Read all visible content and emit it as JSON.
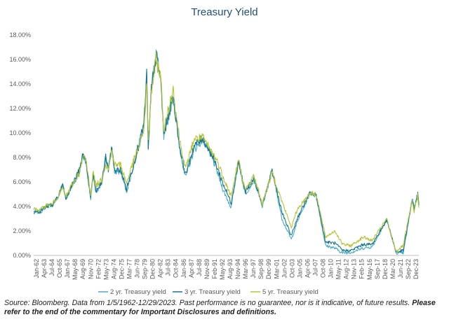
{
  "chart_data": {
    "type": "line",
    "title": "Treasury Yield",
    "xlabel": "",
    "ylabel": "",
    "ylim": [
      0,
      18
    ],
    "yticks": [
      "0.00%",
      "2.00%",
      "4.00%",
      "6.00%",
      "8.00%",
      "10.00%",
      "12.00%",
      "14.00%",
      "16.00%",
      "18.00%"
    ],
    "xticks": [
      "Jan-62",
      "Apr-63",
      "Jul-64",
      "Oct-65",
      "Jan-67",
      "May-68",
      "Aug-69",
      "Nov-70",
      "Feb-72",
      "May-73",
      "Aug-74",
      "Dec-75",
      "Mar-77",
      "Jun-78",
      "Sep-79",
      "Dec-80",
      "Apr-82",
      "Jul-83",
      "Oct-84",
      "Jan-86",
      "Apr-87",
      "Jul-88",
      "Nov-89",
      "Feb-91",
      "May-92",
      "Aug-93",
      "Nov-94",
      "Mar-96",
      "Jun-97",
      "Sep-98",
      "Dec-99",
      "Mar-01",
      "Jun-02",
      "Oct-03",
      "Jan-05",
      "Apr-06",
      "Jul-07",
      "Oct-08",
      "Jan-10",
      "May-11",
      "Aug-12",
      "Nov-13",
      "Feb-15",
      "May-16",
      "Sep-17",
      "Dec-18",
      "Mar-20",
      "Jun-21",
      "Sep-22",
      "Dec-23"
    ],
    "x_range": [
      "1962-01",
      "2023-12"
    ],
    "grid": false,
    "legend": "bottom",
    "series": [
      {
        "name": "2 yr. Treasury yield",
        "color": "#4bacc6",
        "points": [
          [
            "1962-01",
            3.6
          ],
          [
            "1963-01",
            3.5
          ],
          [
            "1964-01",
            4.0
          ],
          [
            "1965-01",
            4.1
          ],
          [
            "1966-01",
            4.8
          ],
          [
            "1966-09",
            5.9
          ],
          [
            "1967-03",
            4.6
          ],
          [
            "1968-01",
            5.5
          ],
          [
            "1969-06",
            6.9
          ],
          [
            "1969-12",
            8.2
          ],
          [
            "1970-06",
            7.6
          ],
          [
            "1971-03",
            4.5
          ],
          [
            "1971-08",
            6.6
          ],
          [
            "1972-01",
            5.0
          ],
          [
            "1972-12",
            5.8
          ],
          [
            "1973-08",
            8.2
          ],
          [
            "1974-01",
            7.0
          ],
          [
            "1974-08",
            8.9
          ],
          [
            "1975-01",
            6.8
          ],
          [
            "1976-01",
            6.9
          ],
          [
            "1976-12",
            5.2
          ],
          [
            "1978-01",
            7.2
          ],
          [
            "1979-01",
            9.4
          ],
          [
            "1979-10",
            11.0
          ],
          [
            "1980-03",
            15.0
          ],
          [
            "1980-06",
            8.5
          ],
          [
            "1980-12",
            13.8
          ],
          [
            "1981-09",
            16.6
          ],
          [
            "1982-06",
            14.5
          ],
          [
            "1982-12",
            9.6
          ],
          [
            "1984-06",
            13.0
          ],
          [
            "1985-06",
            8.9
          ],
          [
            "1986-06",
            6.4
          ],
          [
            "1987-10",
            8.6
          ],
          [
            "1989-03",
            9.5
          ],
          [
            "1990-06",
            8.3
          ],
          [
            "1991-06",
            7.0
          ],
          [
            "1992-06",
            5.4
          ],
          [
            "1993-10",
            3.9
          ],
          [
            "1994-12",
            7.7
          ],
          [
            "1996-01",
            5.0
          ],
          [
            "1997-06",
            6.2
          ],
          [
            "1998-10",
            4.0
          ],
          [
            "2000-05",
            6.9
          ],
          [
            "2001-12",
            3.0
          ],
          [
            "2003-06",
            1.3
          ],
          [
            "2004-06",
            2.8
          ],
          [
            "2006-06",
            5.1
          ],
          [
            "2007-06",
            4.9
          ],
          [
            "2008-12",
            0.8
          ],
          [
            "2010-06",
            0.6
          ],
          [
            "2011-09",
            0.2
          ],
          [
            "2013-01",
            0.25
          ],
          [
            "2015-01",
            0.6
          ],
          [
            "2016-06",
            0.7
          ],
          [
            "2018-10",
            2.9
          ],
          [
            "2019-08",
            1.5
          ],
          [
            "2020-04",
            0.2
          ],
          [
            "2021-06",
            0.2
          ],
          [
            "2022-06",
            3.2
          ],
          [
            "2022-11",
            4.7
          ],
          [
            "2023-03",
            3.9
          ],
          [
            "2023-10",
            5.1
          ],
          [
            "2023-12",
            4.3
          ]
        ]
      },
      {
        "name": "3 yr. Treasury yield",
        "color": "#17758c",
        "points": [
          [
            "1962-01",
            3.5
          ],
          [
            "1963-01",
            3.6
          ],
          [
            "1964-01",
            4.0
          ],
          [
            "1965-01",
            4.1
          ],
          [
            "1966-01",
            4.9
          ],
          [
            "1966-09",
            5.8
          ],
          [
            "1967-03",
            4.7
          ],
          [
            "1968-01",
            5.6
          ],
          [
            "1969-06",
            7.0
          ],
          [
            "1969-12",
            8.3
          ],
          [
            "1970-06",
            7.7
          ],
          [
            "1971-03",
            4.7
          ],
          [
            "1971-08",
            6.7
          ],
          [
            "1972-01",
            5.2
          ],
          [
            "1972-12",
            5.9
          ],
          [
            "1973-08",
            8.0
          ],
          [
            "1974-01",
            7.0
          ],
          [
            "1974-08",
            8.8
          ],
          [
            "1975-01",
            6.9
          ],
          [
            "1976-01",
            7.0
          ],
          [
            "1976-12",
            5.4
          ],
          [
            "1978-01",
            7.3
          ],
          [
            "1979-01",
            9.2
          ],
          [
            "1979-10",
            10.8
          ],
          [
            "1980-03",
            14.8
          ],
          [
            "1980-06",
            8.6
          ],
          [
            "1980-12",
            13.5
          ],
          [
            "1981-09",
            16.3
          ],
          [
            "1982-06",
            14.4
          ],
          [
            "1982-12",
            9.8
          ],
          [
            "1984-06",
            13.1
          ],
          [
            "1985-06",
            9.0
          ],
          [
            "1986-06",
            6.6
          ],
          [
            "1987-10",
            8.9
          ],
          [
            "1989-03",
            9.6
          ],
          [
            "1990-06",
            8.4
          ],
          [
            "1991-06",
            7.3
          ],
          [
            "1992-06",
            5.9
          ],
          [
            "1993-10",
            4.3
          ],
          [
            "1994-12",
            7.7
          ],
          [
            "1996-01",
            5.2
          ],
          [
            "1997-06",
            6.3
          ],
          [
            "1998-10",
            4.1
          ],
          [
            "2000-05",
            6.9
          ],
          [
            "2001-12",
            3.5
          ],
          [
            "2003-06",
            1.6
          ],
          [
            "2004-06",
            3.1
          ],
          [
            "2006-06",
            5.1
          ],
          [
            "2007-06",
            4.9
          ],
          [
            "2008-12",
            1.1
          ],
          [
            "2010-06",
            1.0
          ],
          [
            "2011-09",
            0.4
          ],
          [
            "2013-01",
            0.4
          ],
          [
            "2015-01",
            0.9
          ],
          [
            "2016-06",
            0.9
          ],
          [
            "2018-10",
            2.9
          ],
          [
            "2019-08",
            1.5
          ],
          [
            "2020-04",
            0.25
          ],
          [
            "2021-06",
            0.4
          ],
          [
            "2022-06",
            3.3
          ],
          [
            "2022-11",
            4.6
          ],
          [
            "2023-03",
            3.8
          ],
          [
            "2023-10",
            5.0
          ],
          [
            "2023-12",
            4.1
          ]
        ]
      },
      {
        "name": "5 yr. Treasury yield",
        "color": "#b5c436",
        "points": [
          [
            "1962-01",
            3.8
          ],
          [
            "1963-01",
            3.7
          ],
          [
            "1964-01",
            4.1
          ],
          [
            "1965-01",
            4.2
          ],
          [
            "1966-01",
            4.9
          ],
          [
            "1966-09",
            5.5
          ],
          [
            "1967-03",
            4.8
          ],
          [
            "1968-01",
            5.6
          ],
          [
            "1969-06",
            6.8
          ],
          [
            "1969-12",
            8.0
          ],
          [
            "1970-06",
            7.8
          ],
          [
            "1971-03",
            5.0
          ],
          [
            "1971-08",
            6.8
          ],
          [
            "1972-01",
            5.7
          ],
          [
            "1972-12",
            6.2
          ],
          [
            "1973-08",
            7.5
          ],
          [
            "1974-01",
            7.0
          ],
          [
            "1974-08",
            8.6
          ],
          [
            "1975-01",
            7.4
          ],
          [
            "1976-01",
            7.4
          ],
          [
            "1976-12",
            5.9
          ],
          [
            "1978-01",
            7.6
          ],
          [
            "1979-01",
            9.0
          ],
          [
            "1979-10",
            10.4
          ],
          [
            "1980-03",
            14.0
          ],
          [
            "1980-06",
            9.2
          ],
          [
            "1980-12",
            13.3
          ],
          [
            "1981-09",
            16.0
          ],
          [
            "1982-06",
            14.6
          ],
          [
            "1982-12",
            10.2
          ],
          [
            "1984-06",
            13.6
          ],
          [
            "1985-06",
            9.6
          ],
          [
            "1986-06",
            7.0
          ],
          [
            "1987-10",
            9.5
          ],
          [
            "1989-03",
            9.6
          ],
          [
            "1990-06",
            8.6
          ],
          [
            "1991-06",
            7.8
          ],
          [
            "1992-06",
            6.5
          ],
          [
            "1993-10",
            4.8
          ],
          [
            "1994-12",
            7.8
          ],
          [
            "1996-01",
            5.3
          ],
          [
            "1997-06",
            6.5
          ],
          [
            "1998-10",
            4.2
          ],
          [
            "2000-05",
            6.8
          ],
          [
            "2001-12",
            4.4
          ],
          [
            "2003-06",
            2.3
          ],
          [
            "2004-06",
            3.8
          ],
          [
            "2006-06",
            5.1
          ],
          [
            "2007-06",
            5.0
          ],
          [
            "2008-12",
            1.5
          ],
          [
            "2010-06",
            2.0
          ],
          [
            "2011-09",
            0.9
          ],
          [
            "2013-01",
            0.8
          ],
          [
            "2015-01",
            1.5
          ],
          [
            "2016-06",
            1.2
          ],
          [
            "2018-10",
            3.0
          ],
          [
            "2019-08",
            1.4
          ],
          [
            "2020-04",
            0.35
          ],
          [
            "2021-06",
            0.8
          ],
          [
            "2022-06",
            3.4
          ],
          [
            "2022-11",
            4.4
          ],
          [
            "2023-03",
            3.6
          ],
          [
            "2023-10",
            4.9
          ],
          [
            "2023-12",
            3.9
          ]
        ]
      }
    ]
  },
  "footer": {
    "source_text": "Source: Bloomberg. Data from 1/5/1962-12/29/2023. Past performance is no guarantee, nor is it indicative, of future results.",
    "disclosure_text": "Please refer to the end of the commentary for Important Disclosures and definitions."
  }
}
